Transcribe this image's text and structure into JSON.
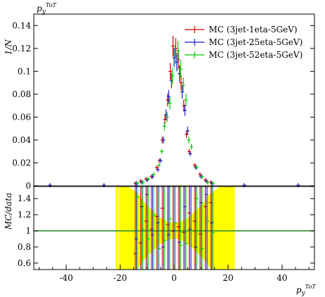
{
  "chart_data": [
    {
      "type": "line",
      "ylabel": "1/N",
      "title_label": "p_y^{ToT}",
      "xlim": [
        -52,
        52
      ],
      "ylim": [
        0,
        0.15
      ],
      "yticks": [
        0,
        0.02,
        0.04,
        0.06,
        0.08,
        0.1,
        0.12,
        0.14
      ],
      "ytick_labels": [
        "0",
        "0.02",
        "0.04",
        "0.06",
        "0.08",
        "0.1",
        "0.12",
        "0.14"
      ],
      "legend_position": "top-right",
      "series": [
        {
          "name": "MC (3jet-1eta-5GeV)",
          "color": "#d40000",
          "x": [
            -14,
            -12,
            -10,
            -8,
            -6,
            -5,
            -4,
            -3,
            -2,
            -1,
            0,
            1,
            2,
            3,
            4,
            5,
            6,
            8,
            10,
            12,
            14
          ],
          "y": [
            0.002,
            0.004,
            0.006,
            0.008,
            0.016,
            0.022,
            0.04,
            0.058,
            0.075,
            0.1,
            0.122,
            0.12,
            0.11,
            0.09,
            0.07,
            0.045,
            0.03,
            0.018,
            0.01,
            0.005,
            0.003
          ]
        },
        {
          "name": "MC (3jet-25eta-5GeV)",
          "color": "#1a1acc",
          "x": [
            -46,
            -26,
            -14,
            -12,
            -10,
            -8,
            -6,
            -5,
            -4,
            -3,
            -2,
            -1,
            0,
            1,
            2,
            3,
            4,
            5,
            6,
            8,
            10,
            12,
            14,
            26,
            46
          ],
          "y": [
            0.0005,
            0.0005,
            0.002,
            0.003,
            0.005,
            0.008,
            0.014,
            0.022,
            0.04,
            0.062,
            0.078,
            0.092,
            0.112,
            0.108,
            0.098,
            0.082,
            0.066,
            0.048,
            0.028,
            0.016,
            0.008,
            0.004,
            0.002,
            0.0005,
            0.0005
          ]
        },
        {
          "name": "MC (3jet-52eta-5GeV)",
          "color": "#00cc00",
          "x": [
            -14,
            -12,
            -10,
            -8,
            -6,
            -5,
            -4,
            -3,
            -2,
            -1,
            0,
            1,
            2,
            3,
            4,
            5,
            6,
            8,
            10,
            12,
            14
          ],
          "y": [
            0.002,
            0.003,
            0.006,
            0.01,
            0.018,
            0.03,
            0.052,
            0.06,
            0.072,
            0.096,
            0.115,
            0.118,
            0.102,
            0.088,
            0.075,
            0.04,
            0.034,
            0.016,
            0.008,
            0.003,
            0.002
          ]
        }
      ]
    },
    {
      "type": "line",
      "ylabel": "MC/data",
      "xlabel": "p_y^{ToT}",
      "xlim": [
        -52,
        52
      ],
      "ylim": [
        0.52,
        1.55
      ],
      "yticks": [
        0.6,
        0.8,
        1,
        1.2,
        1.4
      ],
      "ytick_labels": [
        "0.6",
        "0.8",
        "1",
        "1.2",
        "1.4"
      ],
      "xticks": [
        -40,
        -20,
        0,
        20,
        40
      ],
      "xtick_labels": [
        "-40",
        "-20",
        "0",
        "20",
        "40"
      ],
      "reference_line": 1,
      "band_color": "#ffff00",
      "series": [
        {
          "name": "MC (3jet-1eta-5GeV)",
          "color": "#d40000",
          "x": [
            -14,
            -12,
            -10,
            -8,
            -6,
            -4,
            -2,
            0,
            2,
            4,
            6,
            8,
            10,
            12,
            14
          ],
          "y": [
            0.72,
            0.85,
            1.12,
            1.02,
            1.18,
            1.28,
            1.08,
            1.0,
            1.05,
            0.98,
            1.22,
            1.12,
            0.96,
            1.3,
            1.35
          ]
        },
        {
          "name": "MC (3jet-25eta-5GeV)",
          "color": "#1a1acc",
          "x": [
            -14,
            -12,
            -10,
            -8,
            -6,
            -4,
            -2,
            0,
            2,
            4,
            6,
            8,
            10,
            12,
            14
          ],
          "y": [
            0.9,
            1.3,
            1.45,
            0.95,
            1.1,
            0.8,
            0.95,
            1.0,
            0.86,
            1.3,
            1.02,
            0.8,
            1.35,
            1.45,
            1.1
          ]
        },
        {
          "name": "MC (3jet-52eta-5GeV)",
          "color": "#00cc00",
          "x": [
            -14,
            -12,
            -10,
            -8,
            -6,
            -4,
            -2,
            0,
            2,
            4,
            6,
            8,
            10,
            12,
            14
          ],
          "y": [
            1.42,
            1.02,
            0.9,
            1.2,
            0.78,
            0.88,
            1.15,
            1.1,
            0.82,
            0.84,
            1.0,
            1.4,
            0.78,
            1.12,
            0.98
          ]
        }
      ]
    }
  ]
}
